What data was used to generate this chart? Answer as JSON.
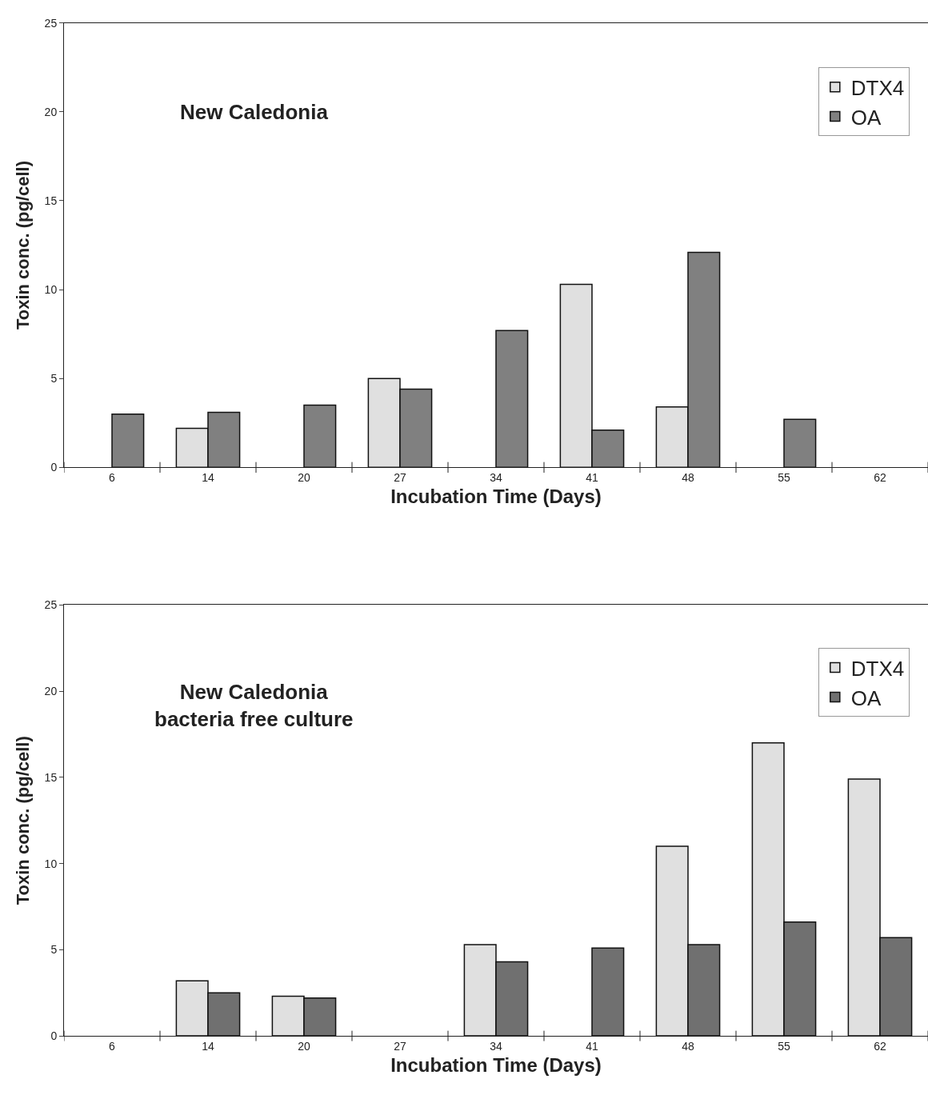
{
  "chart_data": [
    {
      "type": "bar",
      "title": "New Caledonia",
      "xlabel": "Incubation Time (Days)",
      "ylabel": "Toxin conc. (pg/cell)",
      "categories": [
        "6",
        "14",
        "20",
        "27",
        "34",
        "41",
        "48",
        "55",
        "62"
      ],
      "series": [
        {
          "name": "DTX4",
          "color": "#e0e0e0",
          "values": [
            null,
            2.2,
            null,
            5.0,
            null,
            10.3,
            3.4,
            null,
            null
          ]
        },
        {
          "name": "OA",
          "color": "#808080",
          "values": [
            3.0,
            3.1,
            3.5,
            4.4,
            7.7,
            2.1,
            12.1,
            2.7,
            null
          ]
        }
      ],
      "ylim": [
        0,
        25
      ],
      "yticks": [
        0,
        5,
        10,
        15,
        20,
        25
      ],
      "legend": "top right"
    },
    {
      "type": "bar",
      "title": "New Caledonia\nbacteria free culture",
      "xlabel": "Incubation Time (Days)",
      "ylabel": "Toxin conc. (pg/cell)",
      "categories": [
        "6",
        "14",
        "20",
        "27",
        "34",
        "41",
        "48",
        "55",
        "62"
      ],
      "series": [
        {
          "name": "DTX4",
          "color": "#e0e0e0",
          "values": [
            null,
            3.2,
            2.3,
            null,
            5.3,
            null,
            11.0,
            17.0,
            14.9
          ]
        },
        {
          "name": "OA",
          "color": "#707070",
          "values": [
            null,
            2.5,
            2.2,
            null,
            4.3,
            5.1,
            5.3,
            6.6,
            5.7
          ]
        }
      ],
      "ylim": [
        0,
        25
      ],
      "yticks": [
        0,
        5,
        10,
        15,
        20,
        25
      ],
      "legend": "top right"
    }
  ]
}
